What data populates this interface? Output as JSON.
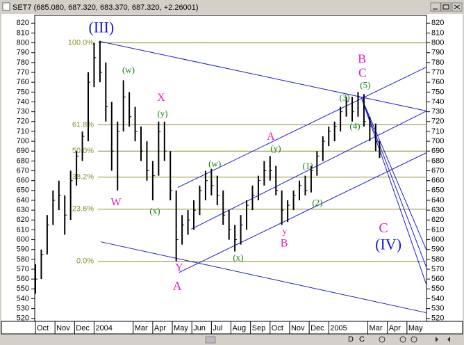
{
  "window_title": "SET7 (685.080, 687.320, 683.370, 687.320, +2.26001)",
  "toolbar_labels": [
    "C",
    "D"
  ],
  "chart_data": {
    "type": "ohlc",
    "xlim": [
      0,
      20
    ],
    "ylim": [
      517,
      828
    ],
    "yticks": [
      520,
      530,
      540,
      550,
      560,
      570,
      580,
      590,
      600,
      610,
      620,
      630,
      640,
      650,
      660,
      670,
      680,
      690,
      700,
      710,
      720,
      730,
      740,
      750,
      760,
      770,
      780,
      790,
      800,
      810,
      820
    ],
    "xticks": [
      {
        "value": 0,
        "label": "Oct"
      },
      {
        "value": 1,
        "label": "Nov"
      },
      {
        "value": 2,
        "label": "Dec"
      },
      {
        "value": 3,
        "label": "2004"
      },
      {
        "value": 5,
        "label": "Mar"
      },
      {
        "value": 6,
        "label": "Apr"
      },
      {
        "value": 7,
        "label": "May"
      },
      {
        "value": 8,
        "label": "Jun"
      },
      {
        "value": 9,
        "label": "Jul"
      },
      {
        "value": 10,
        "label": "Aug"
      },
      {
        "value": 11,
        "label": "Sep"
      },
      {
        "value": 12,
        "label": "Oct"
      },
      {
        "value": 13,
        "label": "Nov"
      },
      {
        "value": 14,
        "label": "Dec"
      },
      {
        "value": 15,
        "label": "2005"
      },
      {
        "value": 17,
        "label": "Mar"
      },
      {
        "value": 18,
        "label": "Apr"
      },
      {
        "value": 19,
        "label": "May"
      }
    ],
    "color": "#000000",
    "x": [
      0,
      0.3,
      0.6,
      0.9,
      1.2,
      1.5,
      1.8,
      2.1,
      2.4,
      2.7,
      3.0,
      3.3,
      3.6,
      3.9,
      4.2,
      4.5,
      4.8,
      5.1,
      5.4,
      5.7,
      6.0,
      6.3,
      6.6,
      6.9,
      7.2,
      7.5,
      7.8,
      8.1,
      8.4,
      8.7,
      9.0,
      9.3,
      9.6,
      9.9,
      10.2,
      10.5,
      10.8,
      11.1,
      11.4,
      11.7,
      12.0,
      12.3,
      12.6,
      12.9,
      13.2,
      13.5,
      13.8,
      14.1,
      14.4,
      14.7,
      15.0,
      15.3,
      15.6,
      15.9,
      16.2,
      16.5,
      16.8,
      17.1,
      17.4,
      17.6
    ],
    "high": [
      575,
      590,
      625,
      650,
      660,
      645,
      670,
      690,
      710,
      770,
      800,
      802,
      780,
      740,
      720,
      762,
      750,
      735,
      715,
      700,
      680,
      720,
      720,
      690,
      650,
      625,
      630,
      640,
      655,
      670,
      672,
      665,
      650,
      630,
      615,
      625,
      640,
      655,
      665,
      680,
      685,
      675,
      650,
      640,
      650,
      660,
      665,
      675,
      690,
      705,
      715,
      720,
      735,
      745,
      745,
      750,
      748,
      725,
      718,
      700
    ],
    "low": [
      545,
      560,
      585,
      615,
      630,
      605,
      620,
      655,
      680,
      700,
      755,
      760,
      720,
      670,
      650,
      710,
      715,
      700,
      680,
      660,
      640,
      665,
      680,
      640,
      578,
      595,
      605,
      610,
      625,
      640,
      645,
      635,
      615,
      600,
      588,
      595,
      610,
      630,
      640,
      655,
      660,
      645,
      615,
      618,
      630,
      640,
      645,
      648,
      665,
      680,
      695,
      700,
      710,
      725,
      720,
      725,
      715,
      700,
      690,
      683
    ],
    "close": [
      560,
      585,
      615,
      640,
      645,
      625,
      660,
      685,
      705,
      760,
      785,
      770,
      735,
      690,
      710,
      745,
      725,
      710,
      690,
      670,
      665,
      710,
      690,
      650,
      600,
      615,
      620,
      630,
      650,
      660,
      655,
      645,
      625,
      610,
      600,
      615,
      635,
      645,
      660,
      670,
      670,
      650,
      630,
      635,
      645,
      655,
      650,
      670,
      685,
      700,
      710,
      715,
      730,
      740,
      730,
      745,
      720,
      715,
      700,
      687
    ],
    "levels": {
      "color": "#8b8b2e",
      "values": [
        800,
        716.7,
        690,
        663.6,
        631,
        578
      ],
      "labels": [
        "100.0%",
        "61.8%",
        "50.0%",
        "38.2%",
        "23.6%",
        "0.0%"
      ],
      "start": 3.2
    },
    "trendline_color": "#1a1ad0",
    "trendlines": [
      [
        3.27,
        801.6,
        20,
        730.8
      ],
      [
        3.34,
        597.8,
        20,
        525.7
      ],
      [
        7.28,
        653,
        20,
        775.4
      ],
      [
        7.96,
        610.6,
        20,
        730.8
      ],
      [
        7.35,
        566.7,
        20,
        688.4
      ],
      [
        16.66,
        745,
        20,
        589.3
      ],
      [
        16.66,
        745,
        20,
        571.6
      ],
      [
        16.66,
        745,
        20,
        554
      ]
    ],
    "annotations": [
      {
        "text": "(III)",
        "color": "#1a1ad0",
        "size": 22,
        "x": 3.37,
        "y": 814.3
      },
      {
        "text": "(w)",
        "color": "#108010",
        "size": 13,
        "x": 4.76,
        "y": 771.9
      },
      {
        "text": "X",
        "color": "#e020c0",
        "size": 16,
        "x": 6.43,
        "y": 743.6
      },
      {
        "text": "(y)",
        "color": "#108010",
        "size": 13,
        "x": 6.5,
        "y": 727.3
      },
      {
        "text": "W",
        "color": "#e020c0",
        "size": 16,
        "x": 4.12,
        "y": 637.4
      },
      {
        "text": "(x)",
        "color": "#108010",
        "size": 13,
        "x": 6.11,
        "y": 628.3
      },
      {
        "text": "Y",
        "color": "#e020c0",
        "size": 16,
        "x": 7.35,
        "y": 570.9
      },
      {
        "text": "A",
        "color": "#e020c0",
        "size": 18,
        "x": 7.25,
        "y": 551.8
      },
      {
        "text": "(w)",
        "color": "#108010",
        "size": 13,
        "x": 9.17,
        "y": 676.4
      },
      {
        "text": "(x)",
        "color": "#108010",
        "size": 13,
        "x": 10.37,
        "y": 580.8
      },
      {
        "text": "A",
        "color": "#e020c0",
        "size": 16,
        "x": 12.04,
        "y": 704
      },
      {
        "text": "(y)",
        "color": "#108010",
        "size": 13,
        "x": 12.29,
        "y": 691.9
      },
      {
        "text": "y",
        "color": "#e020c0",
        "size": 13,
        "x": 12.75,
        "y": 607.7
      },
      {
        "text": "B",
        "color": "#e020c0",
        "size": 16,
        "x": 12.72,
        "y": 595.7
      },
      {
        "text": "(1)",
        "color": "#108010",
        "size": 13,
        "x": 13.93,
        "y": 674.2
      },
      {
        "text": "(2)",
        "color": "#108010",
        "size": 13,
        "x": 14.42,
        "y": 636.7
      },
      {
        "text": "(3)",
        "color": "#108010",
        "size": 13,
        "x": 15.81,
        "y": 743.6
      },
      {
        "text": "(4)",
        "color": "#108010",
        "size": 13,
        "x": 16.34,
        "y": 714.6
      },
      {
        "text": "(5)",
        "color": "#108010",
        "size": 13,
        "x": 16.87,
        "y": 756.3
      },
      {
        "text": "B",
        "color": "#e020c0",
        "size": 18,
        "x": 16.7,
        "y": 782.5
      },
      {
        "text": "C",
        "color": "#e020c0",
        "size": 18,
        "x": 16.73,
        "y": 768.3
      },
      {
        "text": "C",
        "color": "#e020c0",
        "size": 20,
        "x": 17.8,
        "y": 610.6
      },
      {
        "text": "(IV)",
        "color": "#1a1ad0",
        "size": 22,
        "x": 18.05,
        "y": 593.6
      }
    ]
  }
}
